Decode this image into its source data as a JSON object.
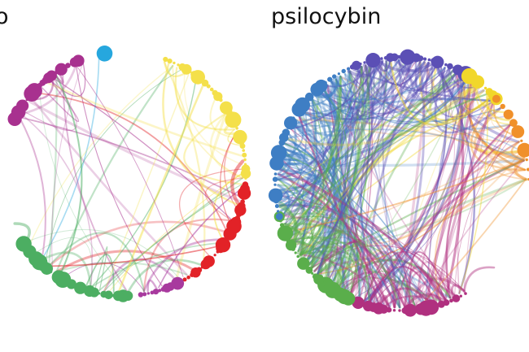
{
  "panels": [
    {
      "id": "placebo",
      "label": "o",
      "groups": [
        {
          "name": "magenta",
          "color": "#a8318f",
          "from": 295,
          "to": 340,
          "nodes": 26
        },
        {
          "name": "cyan",
          "color": "#26a7de",
          "from": 348,
          "to": 354,
          "nodes": 3
        },
        {
          "name": "yellow",
          "color": "#f4e04a",
          "from": 20,
          "to": 92,
          "nodes": 34
        },
        {
          "name": "red",
          "color": "#e22227",
          "from": 95,
          "to": 150,
          "nodes": 28
        },
        {
          "name": "purple",
          "color": "#a83a9e",
          "from": 152,
          "to": 172,
          "nodes": 12
        },
        {
          "name": "green",
          "color": "#4cae62",
          "from": 178,
          "to": 235,
          "nodes": 26
        }
      ],
      "edge_count": 60,
      "seed": 7
    },
    {
      "id": "psilocybin",
      "label": "psilocybin",
      "groups": [
        {
          "name": "indigo",
          "color": "#5b4fb5",
          "from": 335,
          "to": 32,
          "nodes": 30
        },
        {
          "name": "yellow",
          "color": "#f1d72b",
          "from": 32,
          "to": 48,
          "nodes": 8
        },
        {
          "name": "orange",
          "color": "#f0902a",
          "from": 48,
          "to": 88,
          "nodes": 10
        },
        {
          "name": "magenta",
          "color": "#b0307f",
          "from": 150,
          "to": 205,
          "nodes": 24
        },
        {
          "name": "green",
          "color": "#5aae4b",
          "from": 205,
          "to": 255,
          "nodes": 26
        },
        {
          "name": "blue",
          "color": "#3e7ec4",
          "from": 255,
          "to": 335,
          "nodes": 34
        }
      ],
      "edge_count": 320,
      "seed": 13
    }
  ]
}
